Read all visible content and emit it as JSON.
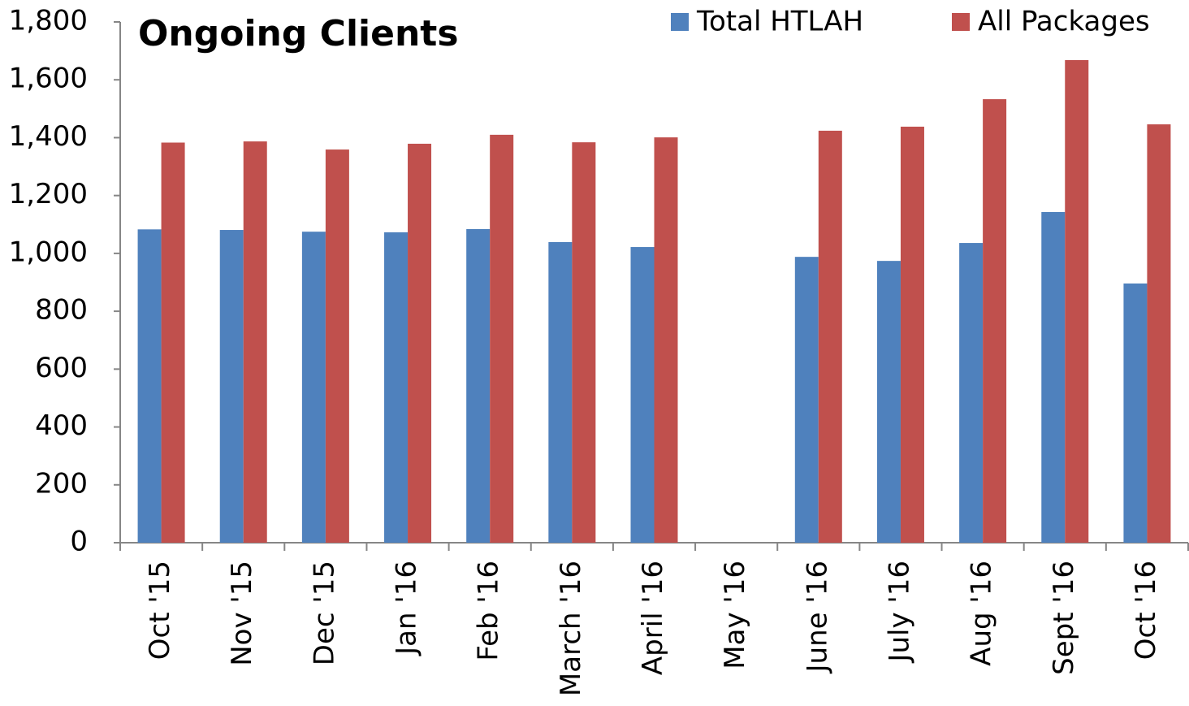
{
  "chart_data": {
    "type": "bar",
    "title": "Ongoing Clients",
    "categories": [
      "Oct '15",
      "Nov '15",
      "Dec '15",
      "Jan '16",
      "Feb '16",
      "March '16",
      "April '16",
      "May '16",
      "June '16",
      "July '16",
      "Aug '16",
      "Sept '16",
      "Oct '16"
    ],
    "series": [
      {
        "name": "Total HTLAH",
        "color": "#4f81bd",
        "values": [
          1083,
          1081,
          1075,
          1073,
          1084,
          1039,
          1022,
          null,
          988,
          974,
          1036,
          1143,
          896
        ]
      },
      {
        "name": "All Packages",
        "color": "#c0504d",
        "values": [
          1383,
          1387,
          1359,
          1379,
          1410,
          1384,
          1401,
          null,
          1424,
          1438,
          1533,
          1668,
          1446
        ]
      }
    ],
    "ylim": [
      0,
      1800
    ],
    "yticks": [
      0,
      200,
      400,
      600,
      800,
      {
        "value": 1000,
        "label": "1,000"
      },
      {
        "value": 1200,
        "label": "1,200"
      },
      {
        "value": 1400,
        "label": "1,400"
      },
      {
        "value": 1600,
        "label": "1,600"
      },
      {
        "value": 1800,
        "label": "1,800"
      }
    ],
    "legend": "top-right",
    "grid": false
  }
}
